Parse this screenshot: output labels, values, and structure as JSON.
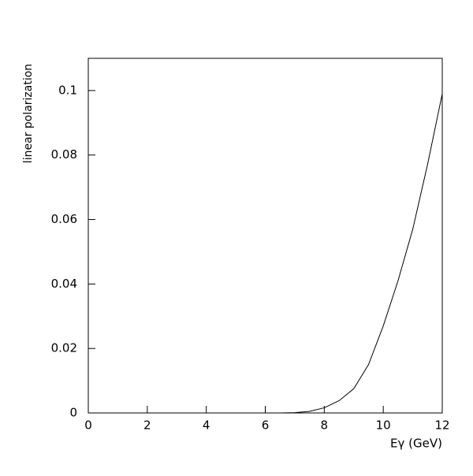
{
  "chart_data": {
    "type": "line",
    "ylabel": "linear polarization",
    "xlabel": "Eγ (GeV)",
    "x": [
      6.5,
      7,
      7.5,
      8,
      8.5,
      9,
      9.5,
      10,
      10.5,
      11,
      11.5,
      12
    ],
    "values": [
      0,
      0.0001,
      0.0005,
      0.0016,
      0.0038,
      0.0075,
      0.015,
      0.027,
      0.041,
      0.057,
      0.077,
      0.099
    ],
    "color": "#000000",
    "xlim": [
      0,
      12
    ],
    "xticks": [
      0,
      2,
      4,
      6,
      8,
      10,
      12
    ],
    "ylim": [
      0,
      0.11
    ],
    "yticks": [
      0,
      0.02,
      0.04,
      0.06,
      0.08,
      0.1
    ]
  }
}
